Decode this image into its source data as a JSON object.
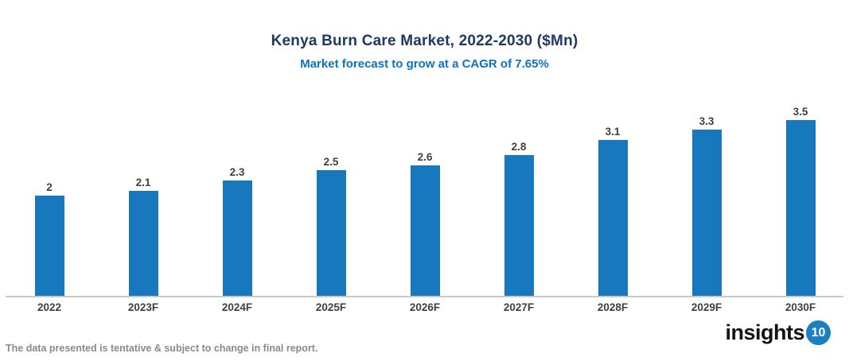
{
  "chart_data": {
    "type": "bar",
    "title": "Kenya Burn Care Market, 2022-2030 ($Mn)",
    "subtitle": "Market forecast to grow at a CAGR of 7.65%",
    "categories": [
      "2022",
      "2023F",
      "2024F",
      "2025F",
      "2026F",
      "2027F",
      "2028F",
      "2029F",
      "2030F"
    ],
    "values": [
      2,
      2.1,
      2.3,
      2.5,
      2.6,
      2.8,
      3.1,
      3.3,
      3.5
    ],
    "value_labels": [
      "2",
      "2.1",
      "2.3",
      "2.5",
      "2.6",
      "2.8",
      "3.1",
      "3.3",
      "3.5"
    ],
    "xlabel": "",
    "ylabel": "",
    "ylim": [
      0,
      3.83
    ],
    "grid": false,
    "legend_position": "none",
    "bar_color": "#1878BE",
    "value_label_color": "#404040",
    "tick_label_color": "#404040",
    "axis_line_color": "#C9C9C9",
    "title_color": "#1F3864",
    "subtitle_color": "#0B72C5"
  },
  "footer": {
    "note": "The data presented is tentative & subject to change in final report.",
    "logo_text": "insights",
    "logo_number": "10",
    "logo_circle_color": "#1B7FC3"
  }
}
